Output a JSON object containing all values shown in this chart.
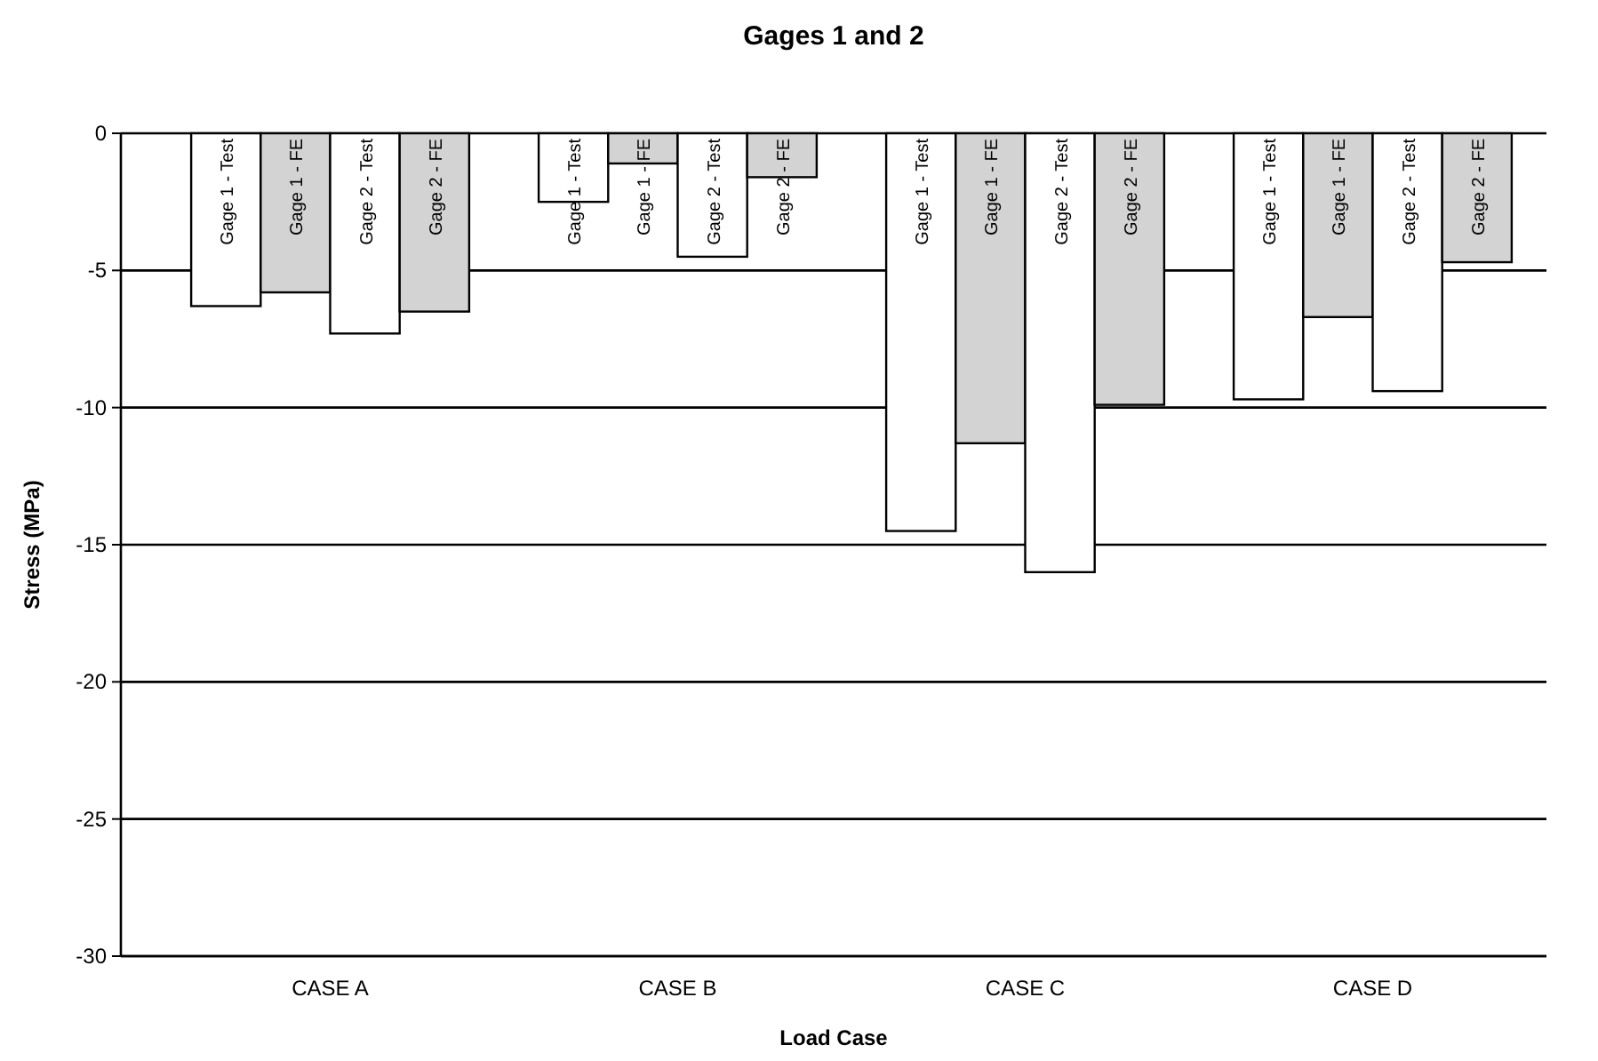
{
  "chart_data": {
    "type": "bar",
    "title": "Gages 1 and 2",
    "xlabel": "Load Case",
    "ylabel": "Stress (MPa)",
    "categories": [
      "CASE A",
      "CASE B",
      "CASE C",
      "CASE D"
    ],
    "series": [
      {
        "name": "Gage 1 - Test",
        "color": "#ffffff",
        "values": [
          -6.3,
          -2.5,
          -14.5,
          -9.7
        ]
      },
      {
        "name": "Gage 1 - FE",
        "color": "#d3d3d3",
        "values": [
          -5.8,
          -1.1,
          -11.3,
          -6.7
        ]
      },
      {
        "name": "Gage 2 - Test",
        "color": "#ffffff",
        "values": [
          -7.3,
          -4.5,
          -16,
          -9.4
        ]
      },
      {
        "name": "Gage 2 - FE",
        "color": "#d3d3d3",
        "values": [
          -6.5,
          -1.6,
          -9.9,
          -4.7
        ]
      }
    ],
    "ylim": [
      -30,
      0
    ],
    "yticks": [
      -30,
      -25,
      -20,
      -15,
      -10,
      -5,
      0
    ],
    "grid": "y"
  }
}
